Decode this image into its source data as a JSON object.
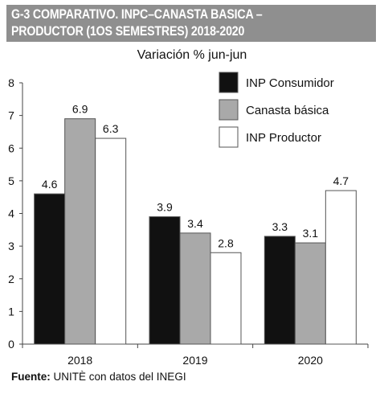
{
  "chart_data": {
    "type": "bar",
    "title_lines": [
      "G-3 COMPARATIVO. INPC–CANASTA BASICA –",
      "PRODUCTOR (1OS SEMESTRES) 2018-2020"
    ],
    "subtitle": "Variación % jun-jun",
    "categories": [
      "2018",
      "2019",
      "2020"
    ],
    "series": [
      {
        "name": "INP Consumidor",
        "values": [
          4.6,
          3.9,
          3.3
        ],
        "value_labels": [
          "4.6",
          "3.9",
          "3.3"
        ],
        "color": "#111111"
      },
      {
        "name": "Canasta básica",
        "values": [
          6.9,
          3.4,
          3.1
        ],
        "value_labels": [
          "6.9",
          "3.4",
          "3.1"
        ],
        "color": "#a9a9a9"
      },
      {
        "name": "INP Productor",
        "values": [
          6.3,
          2.8,
          4.7
        ],
        "value_labels": [
          "6.3",
          "2.8",
          "4.7"
        ],
        "color": "#ffffff"
      }
    ],
    "ylim": [
      0,
      8
    ],
    "yticks": [
      "0",
      "1",
      "2",
      "3",
      "4",
      "5",
      "6",
      "7",
      "8"
    ],
    "grid": false,
    "legend_position": "top-right"
  },
  "source": {
    "label": "Fuente:",
    "text": " UNITÈ con datos del INEGI"
  }
}
